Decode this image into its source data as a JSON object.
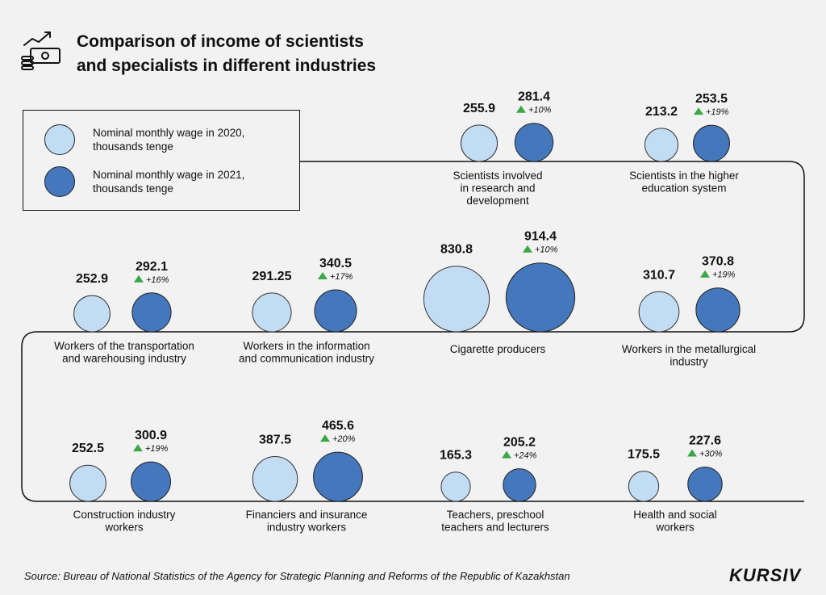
{
  "title": {
    "line1": "Comparison of income of scientists",
    "line2": "and specialists in different industries"
  },
  "icon": "money-growth-icon",
  "legend": [
    {
      "label": "Nominal monthly wage in 2020, thousands tenge",
      "color": "#c2dcf4"
    },
    {
      "label": "Nominal monthly wage in 2021, thousands tenge",
      "color": "#4477bb"
    }
  ],
  "chart_data": {
    "type": "bubble",
    "series": [
      {
        "name": "Nominal monthly wage in 2020, thousands tenge"
      },
      {
        "name": "Nominal monthly wage in 2021, thousands tenge"
      }
    ],
    "categories": [
      {
        "label": "Scientists involved in research and development",
        "v2020": "255.9",
        "v2021": "281.4",
        "change": "+10%"
      },
      {
        "label": "Scientists in the higher education system",
        "v2020": "213.2",
        "v2021": "253.5",
        "change": "+19%"
      },
      {
        "label": "Workers of the transportation and warehousing industry",
        "v2020": "252.9",
        "v2021": "292.1",
        "change": "+16%"
      },
      {
        "label": "Workers in the information and communication industry",
        "v2020": "291.25",
        "v2021": "340.5",
        "change": "+17%"
      },
      {
        "label": "Cigarette producers",
        "v2020": "830.8",
        "v2021": "914.4",
        "change": "+10%"
      },
      {
        "label": "Workers in the metallurgical industry",
        "v2020": "310.7",
        "v2021": "370.8",
        "change": "+19%"
      },
      {
        "label": "Construction industry workers",
        "v2020": "252.5",
        "v2021": "300.9",
        "change": "+19%"
      },
      {
        "label": "Financiers and insurance industry workers",
        "v2020": "387.5",
        "v2021": "465.6",
        "change": "+20%"
      },
      {
        "label": "Teachers, preschool teachers and lecturers",
        "v2020": "165.3",
        "v2021": "205.2",
        "change": "+24%"
      },
      {
        "label": "Health and social workers",
        "v2020": "175.5",
        "v2021": "227.6",
        "change": "+30%"
      }
    ],
    "colors": {
      "y2020": "#c2dcf4",
      "y2021": "#4477bb",
      "increase": "#3aa845"
    }
  },
  "source": "Source: Bureau of National Statistics of the Agency for Strategic Planning and Reforms of the Republic of Kazakhstan",
  "brand": "KURSIV"
}
